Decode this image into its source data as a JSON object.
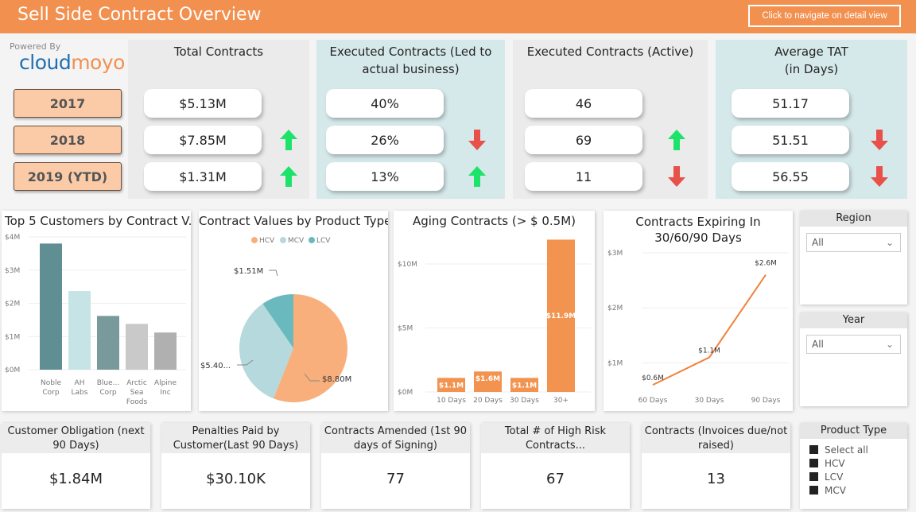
{
  "header": {
    "title": "Sell Side Contract Overview",
    "nav_button": "Click to navigate on detail view"
  },
  "branding": {
    "powered_by": "Powered By",
    "logo_a": "cloud",
    "logo_b": "moyo"
  },
  "kpi": {
    "years": [
      "2017",
      "2018",
      "2019 (YTD)"
    ],
    "columns": [
      {
        "title": "Total Contracts",
        "values": [
          "$5.13M",
          "$7.85M",
          "$1.31M"
        ],
        "trend": [
          null,
          "up",
          "up"
        ]
      },
      {
        "title": "Executed Contracts (Led to actual business)",
        "values": [
          "40%",
          "26%",
          "13%"
        ],
        "trend": [
          null,
          "down",
          "up"
        ]
      },
      {
        "title": "Executed Contracts  (Active)",
        "values": [
          "46",
          "69",
          "11"
        ],
        "trend": [
          null,
          "up",
          "down"
        ]
      },
      {
        "title": "Average TAT (in Days)",
        "values": [
          "51.17",
          "51.51",
          "56.55"
        ],
        "trend": [
          null,
          "down",
          "down"
        ]
      }
    ],
    "colors": {
      "up": "#1ee36a",
      "down": "#e8504a"
    }
  },
  "chart_data": [
    {
      "type": "bar",
      "title": "Top 5 Customers by Contract V...",
      "categories": [
        "Noble Corp",
        "AH Labs",
        "Blue... Corp",
        "Arctic Sea Foods",
        "Alpine Inc"
      ],
      "values": [
        3.8,
        2.37,
        1.62,
        1.38,
        1.12
      ],
      "colors": [
        "#5f8e93",
        "#c6e3e6",
        "#789a9a",
        "#c9c9c9",
        "#b0b0b0"
      ],
      "yticks": [
        "$0M",
        "$1M",
        "$2M",
        "$3M",
        "$4M"
      ],
      "ylim": [
        0,
        4
      ],
      "grid": true
    },
    {
      "type": "pie",
      "title": "Contract Values by Product Type",
      "legend": [
        "HCV",
        "MCV",
        "LCV"
      ],
      "values": [
        8.8,
        5.4,
        1.51
      ],
      "labels": [
        "$8.80M",
        "$5.40...",
        "$1.51M"
      ],
      "colors": [
        "#f8af7c",
        "#b5d9dc",
        "#6ab9bf"
      ],
      "legend_position": "top"
    },
    {
      "type": "bar",
      "title": "Aging Contracts (> $ 0.5M)",
      "categories": [
        "10 Days",
        "20 Days",
        "30 Days",
        "30+"
      ],
      "values": [
        1.1,
        1.6,
        1.1,
        11.9
      ],
      "labels": [
        "$1.1M",
        "$1.6M",
        "$1.1M",
        "$11.9M"
      ],
      "color": "#f2944f",
      "yticks": [
        "$0M",
        "$5M",
        "$10M"
      ],
      "ylim": [
        0,
        12
      ],
      "grid": true
    },
    {
      "type": "line",
      "title": "Contracts Expiring In 30/60/90 Days",
      "categories": [
        "60 Days",
        "30 Days",
        "90 Days"
      ],
      "values": [
        0.6,
        1.1,
        2.6
      ],
      "labels": [
        "$0.6M",
        "$1.1M",
        "$2.6M"
      ],
      "color": "#f2813a",
      "yticks": [
        "$1M",
        "$2M",
        "$3M"
      ],
      "ylim": [
        0.4,
        3
      ],
      "grid": true
    }
  ],
  "slicers": {
    "region": {
      "title": "Region",
      "value": "All"
    },
    "year": {
      "title": "Year",
      "value": "All"
    },
    "product": {
      "title": "Product Type",
      "options": [
        "Select all",
        "HCV",
        "LCV",
        "MCV"
      ]
    }
  },
  "cards": [
    {
      "title": "Customer Obligation (next 90 Days)",
      "value": "$1.84M"
    },
    {
      "title": "Penalties Paid by Customer(Last 90 Days)",
      "value": "$30.10K"
    },
    {
      "title": "Contracts Amended (1st 90 days of Signing)",
      "value": "77"
    },
    {
      "title": "Total # of High Risk Contracts...",
      "value": "67"
    },
    {
      "title": "Contracts (Invoices due/not raised)",
      "value": "13"
    }
  ]
}
